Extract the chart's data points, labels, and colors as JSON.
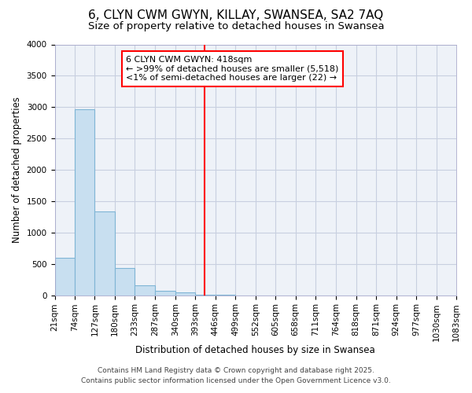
{
  "title": "6, CLYN CWM GWYN, KILLAY, SWANSEA, SA2 7AQ",
  "subtitle": "Size of property relative to detached houses in Swansea",
  "xlabel": "Distribution of detached houses by size in Swansea",
  "ylabel": "Number of detached properties",
  "bar_color": "#c8dff0",
  "bar_edge_color": "#7fb5d5",
  "bg_color": "#eef2f8",
  "grid_color": "#c8cfe0",
  "bin_edges": [
    21,
    74,
    127,
    180,
    233,
    287,
    340,
    393,
    446,
    499,
    552,
    605,
    658,
    711,
    764,
    818,
    871,
    924,
    977,
    1030,
    1083
  ],
  "bin_counts": [
    600,
    2970,
    1340,
    430,
    160,
    75,
    40,
    5,
    2,
    1,
    1,
    0,
    0,
    0,
    0,
    0,
    0,
    0,
    0,
    0
  ],
  "vline_x": 418,
  "vline_color": "red",
  "annotation_title": "6 CLYN CWM GWYN: 418sqm",
  "annotation_line1": "← >99% of detached houses are smaller (5,518)",
  "annotation_line2": "<1% of semi-detached houses are larger (22) →",
  "ylim": [
    0,
    4000
  ],
  "yticks": [
    0,
    500,
    1000,
    1500,
    2000,
    2500,
    3000,
    3500,
    4000
  ],
  "tick_labels": [
    "21sqm",
    "74sqm",
    "127sqm",
    "180sqm",
    "233sqm",
    "287sqm",
    "340sqm",
    "393sqm",
    "446sqm",
    "499sqm",
    "552sqm",
    "605sqm",
    "658sqm",
    "711sqm",
    "764sqm",
    "818sqm",
    "871sqm",
    "924sqm",
    "977sqm",
    "1030sqm",
    "1083sqm"
  ],
  "footnote1": "Contains HM Land Registry data © Crown copyright and database right 2025.",
  "footnote2": "Contains public sector information licensed under the Open Government Licence v3.0.",
  "title_fontsize": 11,
  "subtitle_fontsize": 9.5,
  "axis_label_fontsize": 8.5,
  "tick_fontsize": 7.5,
  "annotation_fontsize": 8,
  "footnote_fontsize": 6.5
}
